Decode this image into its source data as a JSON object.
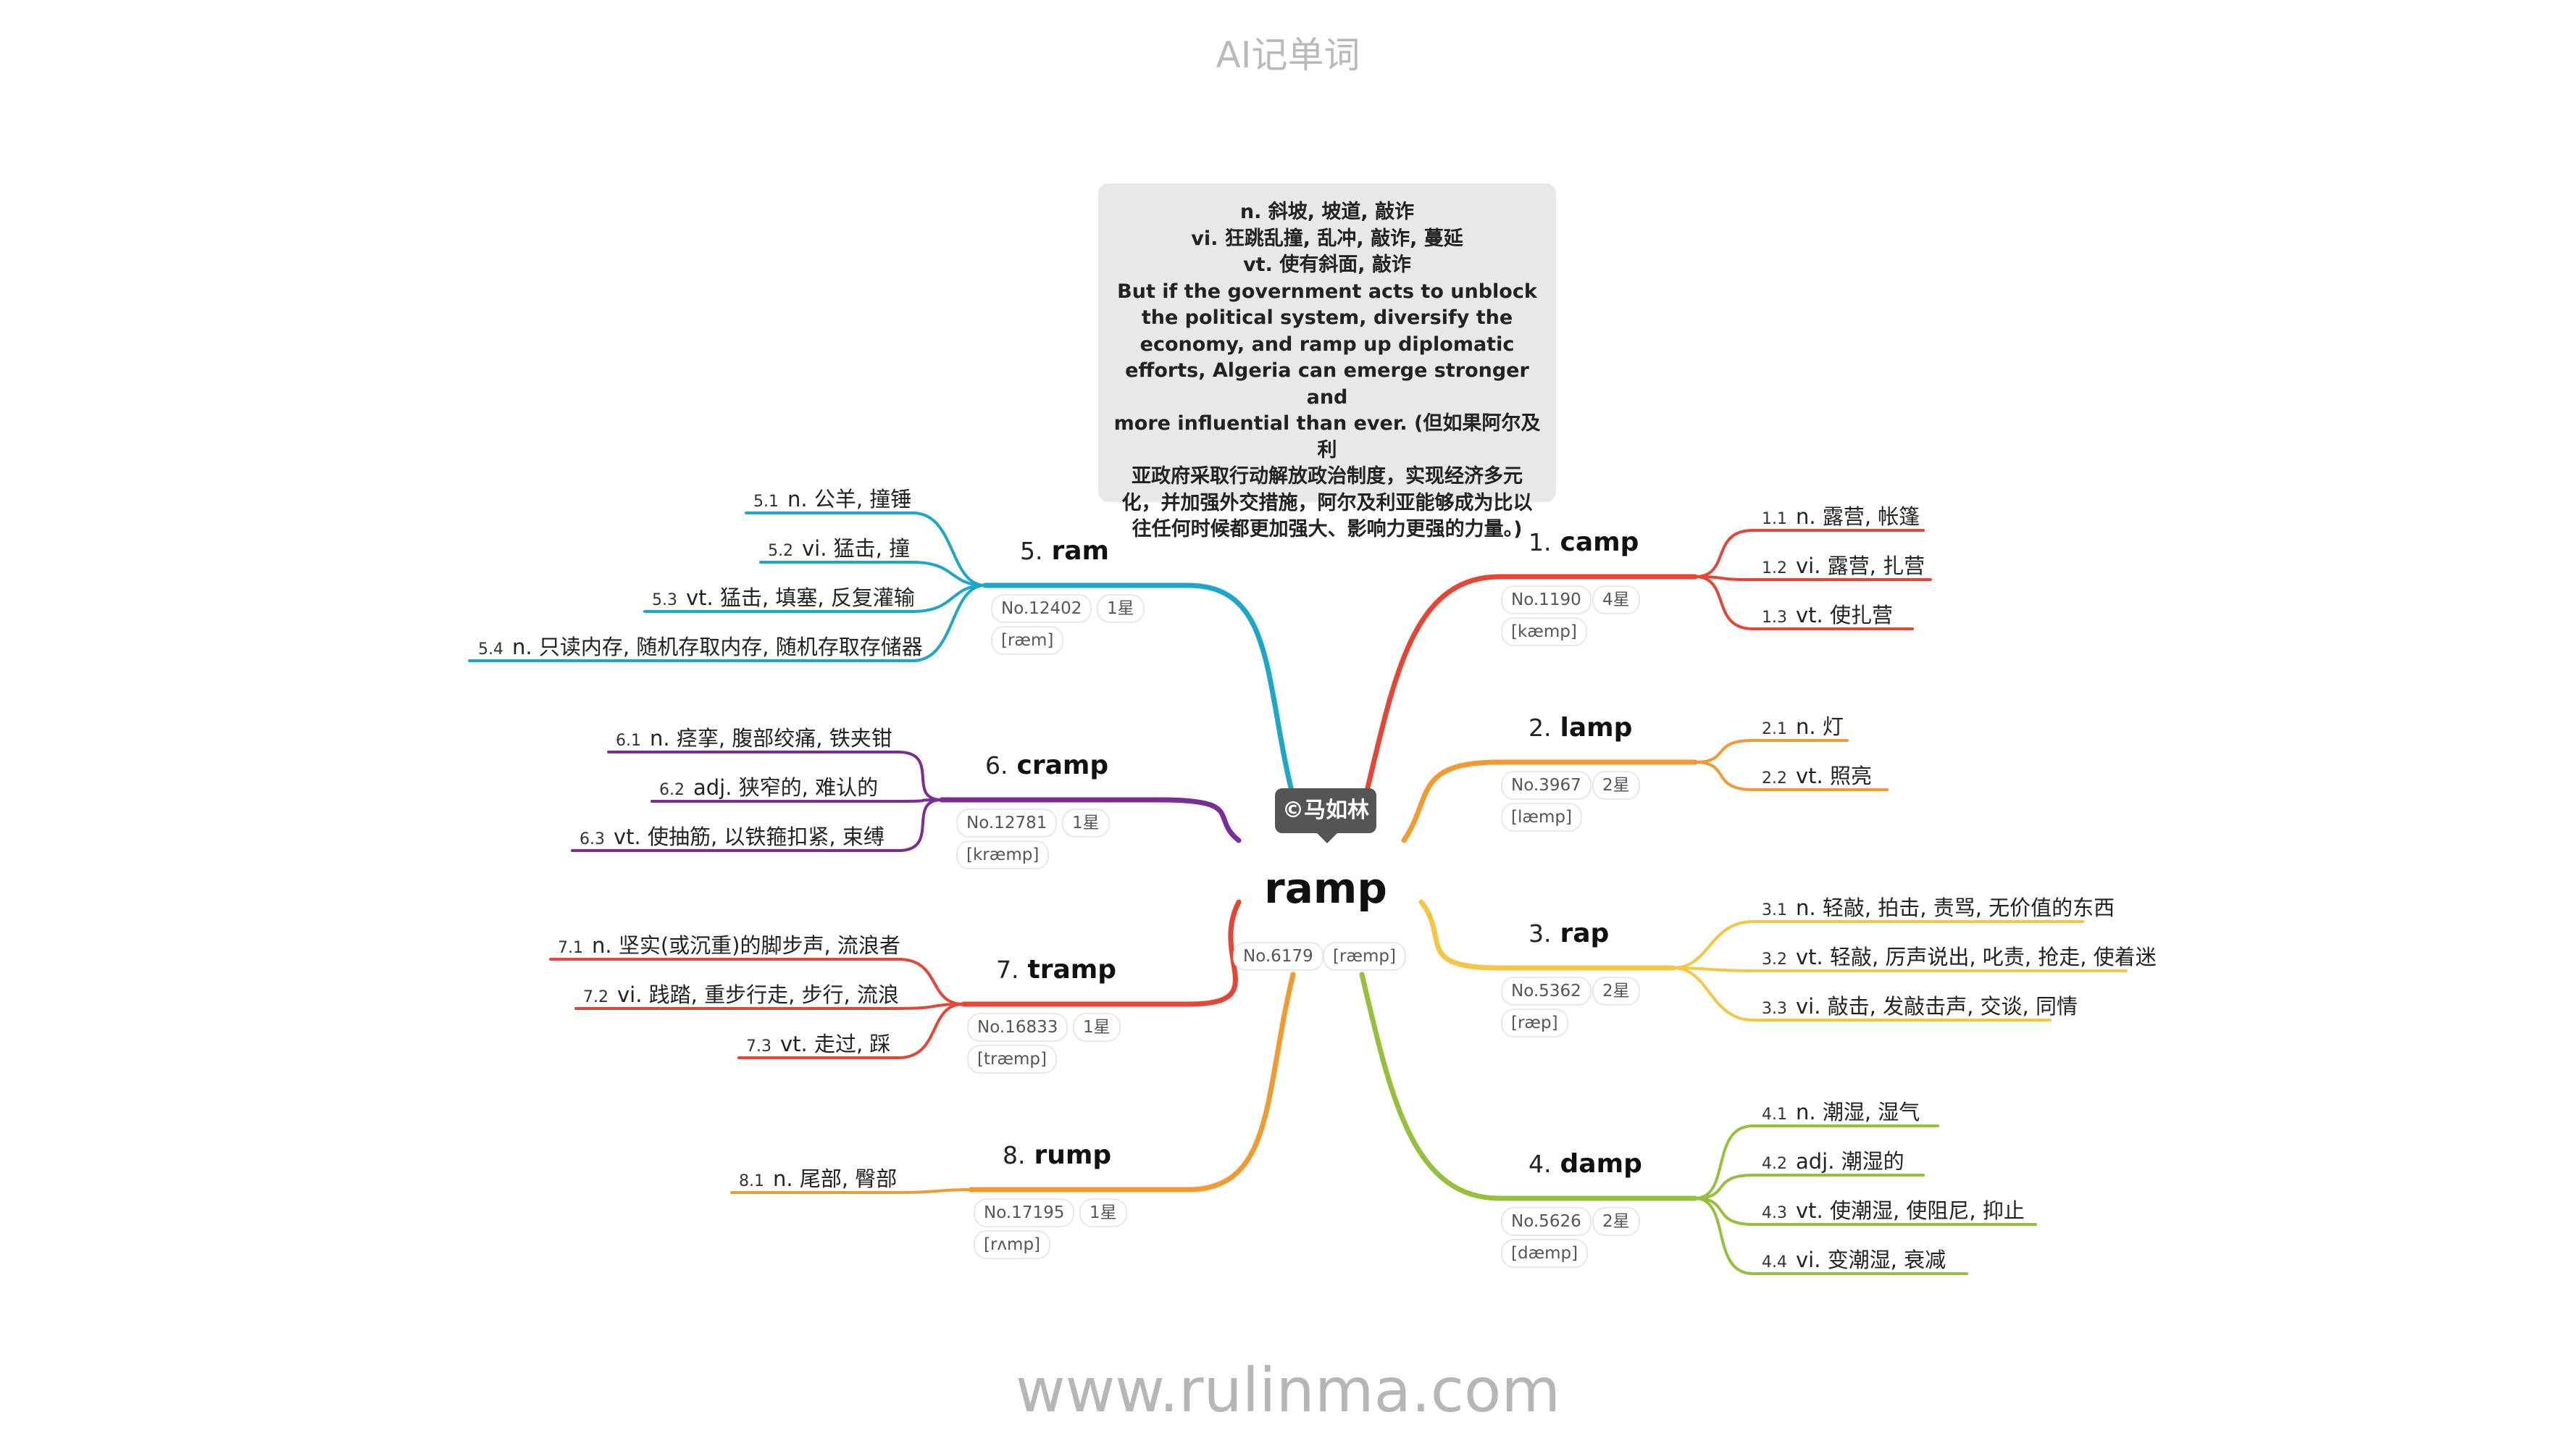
{
  "header": {
    "title": "AI记单词"
  },
  "footer": {
    "url": "www.rulinma.com"
  },
  "root": {
    "word": "ramp",
    "no": "No.6179",
    "phonetic": "[ræmp]",
    "author": "©马如林"
  },
  "note": {
    "lines": [
      "n. 斜坡, 坡道, 敲诈",
      "vi. 狂跳乱撞, 乱冲, 敲诈, 蔓延",
      "vt. 使有斜面, 敲诈",
      "But if the government acts to unblock",
      "the political system, diversify the",
      "economy, and ramp up diplomatic",
      "efforts, Algeria can emerge stronger and",
      "more influential than ever. (但如果阿尔及利",
      "亚政府采取行动解放政治制度，实现经济多元",
      "化，并加强外交措施，阿尔及利亚能够成为比以",
      "往任何时候都更加强大、影响力更强的力量。)"
    ]
  },
  "branches": [
    {
      "index": "1.",
      "word": "camp",
      "no": "No.1190",
      "stars": "4星",
      "phonetic": "[kæmp]",
      "color": "#e64535",
      "subs": [
        {
          "num": "1.1",
          "text": "n. 露营, 帐篷"
        },
        {
          "num": "1.2",
          "text": "vi. 露营, 扎营"
        },
        {
          "num": "1.3",
          "text": "vt. 使扎营"
        }
      ]
    },
    {
      "index": "2.",
      "word": "lamp",
      "no": "No.3967",
      "stars": "2星",
      "phonetic": "[læmp]",
      "color": "#f29a30",
      "subs": [
        {
          "num": "2.1",
          "text": "n. 灯"
        },
        {
          "num": "2.2",
          "text": "vt. 照亮"
        }
      ]
    },
    {
      "index": "3.",
      "word": "rap",
      "no": "No.5362",
      "stars": "2星",
      "phonetic": "[ræp]",
      "color": "#f6c543",
      "subs": [
        {
          "num": "3.1",
          "text": "n. 轻敲, 拍击, 责骂, 无价值的东西"
        },
        {
          "num": "3.2",
          "text": "vt. 轻敲, 厉声说出, 叱责, 抢走, 使着迷"
        },
        {
          "num": "3.3",
          "text": "vi. 敲击, 发敲击声, 交谈, 同情"
        }
      ]
    },
    {
      "index": "4.",
      "word": "damp",
      "no": "No.5626",
      "stars": "2星",
      "phonetic": "[dæmp]",
      "color": "#96c03c",
      "subs": [
        {
          "num": "4.1",
          "text": "n. 潮湿, 湿气"
        },
        {
          "num": "4.2",
          "text": "adj. 潮湿的"
        },
        {
          "num": "4.3",
          "text": "vt. 使潮湿, 使阻尼, 抑止"
        },
        {
          "num": "4.4",
          "text": "vi. 变潮湿, 衰减"
        }
      ]
    },
    {
      "index": "5.",
      "word": "ram",
      "no": "No.12402",
      "stars": "1星",
      "phonetic": "[ræm]",
      "color": "#1ca7c9",
      "subs": [
        {
          "num": "5.1",
          "text": "n. 公羊, 撞锤"
        },
        {
          "num": "5.2",
          "text": "vi. 猛击, 撞"
        },
        {
          "num": "5.3",
          "text": "vt. 猛击, 填塞, 反复灌输"
        },
        {
          "num": "5.4",
          "text": "n. 只读内存, 随机存取内存, 随机存取存储器"
        }
      ]
    },
    {
      "index": "6.",
      "word": "cramp",
      "no": "No.12781",
      "stars": "1星",
      "phonetic": "[kræmp]",
      "color": "#7b2d96",
      "subs": [
        {
          "num": "6.1",
          "text": "n. 痉挛, 腹部绞痛, 铁夹钳"
        },
        {
          "num": "6.2",
          "text": "adj. 狭窄的, 难认的"
        },
        {
          "num": "6.3",
          "text": "vt. 使抽筋, 以铁箍扣紧, 束缚"
        }
      ]
    },
    {
      "index": "7.",
      "word": "tramp",
      "no": "No.16833",
      "stars": "1星",
      "phonetic": "[træmp]",
      "color": "#e64535",
      "subs": [
        {
          "num": "7.1",
          "text": "n. 坚实(或沉重)的脚步声, 流浪者"
        },
        {
          "num": "7.2",
          "text": "vi. 践踏, 重步行走, 步行, 流浪"
        },
        {
          "num": "7.3",
          "text": "vt. 走过, 踩"
        }
      ]
    },
    {
      "index": "8.",
      "word": "rump",
      "no": "No.17195",
      "stars": "1星",
      "phonetic": "[rʌmp]",
      "color": "#f29a30",
      "subs": [
        {
          "num": "8.1",
          "text": "n. 尾部, 臀部"
        }
      ]
    }
  ]
}
